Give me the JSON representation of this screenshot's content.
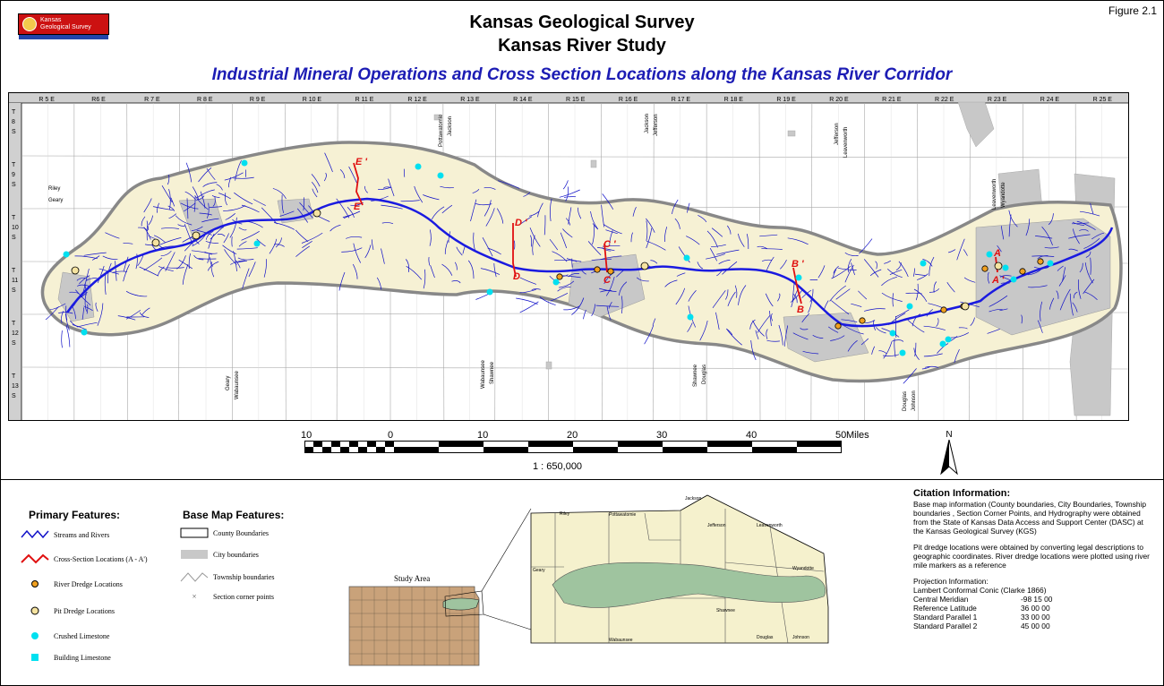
{
  "header": {
    "logo_line1": "Kansas",
    "logo_line2": "Geological Survey",
    "figure_label": "Figure 2.1",
    "title1": "Kansas Geological Survey",
    "title2": "Kansas River Study",
    "title3": "Industrial Mineral Operations and Cross Section Locations along the Kansas River Corridor"
  },
  "ranges": [
    "R 5 E",
    "R6 E",
    "R 7 E",
    "R 8 E",
    "R 9 E",
    "R 10 E",
    "R 11 E",
    "R 12 E",
    "R 13 E",
    "R 14 E",
    "R 15 E",
    "R 16 E",
    "R 17 E",
    "R 18 E",
    "R 19 E",
    "R 20 E",
    "R 21 E",
    "R 22 E",
    "R 23 E",
    "R 24 E",
    "R 25 E"
  ],
  "townships": [
    {
      "t": "T",
      "n": "8",
      "s": "S"
    },
    {
      "t": "T",
      "n": "9",
      "s": "S"
    },
    {
      "t": "T",
      "n": "10",
      "s": "S"
    },
    {
      "t": "T",
      "n": "11",
      "s": "S"
    },
    {
      "t": "T",
      "n": "12",
      "s": "S"
    },
    {
      "t": "T",
      "n": "13",
      "s": "S"
    }
  ],
  "county_labels": [
    "Riley",
    "Geary",
    "Pottawatomie",
    "Jackson",
    "Jackson",
    "Jefferson",
    "Jefferson",
    "Leavenworth",
    "Leavenworth",
    "Wyandotte",
    "Geary",
    "Wabaunsee",
    "Wabaunsee",
    "Shawnee",
    "Shawnee",
    "Douglas",
    "Douglas",
    "Johnson"
  ],
  "cross_sections": [
    {
      "top": "E '",
      "bottom": "E"
    },
    {
      "top": "D '",
      "bottom": "D"
    },
    {
      "top": "C '",
      "bottom": "C"
    },
    {
      "top": "B '",
      "bottom": "B"
    },
    {
      "top": "A",
      "bottom": "A '"
    }
  ],
  "scale": {
    "ticks": [
      "10",
      "0",
      "10",
      "20",
      "30",
      "40",
      "50"
    ],
    "unit": "Miles",
    "ratio": "1 : 650,000",
    "north": "N"
  },
  "legend": {
    "primary_title": "Primary Features:",
    "primary": [
      "Streams and Rivers",
      "Cross-Section Locations (A - A')",
      "River Dredge Locations",
      "Pit Dredge Locations",
      "Crushed Limestone",
      "Building Limestone"
    ],
    "base_title": "Base Map Features:",
    "base": [
      "County Boundaries",
      "City boundaries",
      "Township boundaries",
      "Section corner points"
    ]
  },
  "study_area": {
    "label": "Study Area",
    "inset_counties": [
      "Jackson",
      "Riley",
      "Pottawatomie",
      "Jefferson",
      "Leavenworth",
      "Geary",
      "Wyandotte",
      "Shawnee",
      "Wabaunsee",
      "Douglas",
      "Johnson"
    ]
  },
  "citation": {
    "title": "Citation Information:",
    "p1": "Base map information (County boundaries, City Boundaries, Township boundaries , Section Corner Points, and Hydrography were obtained from the State of Kansas Data Access and Support Center (DASC) at the Kansas Geological Survey (KGS)",
    "p2": "Pit dredge locations were obtained by converting legal descriptions to geographic coordinates.  River dredge locations were plotted using river mile markers as a reference",
    "proj_title": "Projection Information:",
    "proj_name": "Lambert Conformal Conic (Clarke 1866)",
    "rows": [
      {
        "k": "Central Meridian",
        "v": "-98 15 00"
      },
      {
        "k": "Reference Latitude",
        "v": "36 00 00"
      },
      {
        "k": "Standard Parallel 1",
        "v": "33 00 00"
      },
      {
        "k": "Standard Parallel 2",
        "v": "45 00 00"
      }
    ]
  },
  "colors": {
    "corridor": "#f6f1d4",
    "city": "#c8c8c8",
    "stream": "#1010c8",
    "river": "#1a1ae0",
    "section": "#e01010",
    "dredge": "#f0a020",
    "limestone": "#00e0f0",
    "title3": "#1c1cb4",
    "inset_corridor": "#9fc49f",
    "inset_counties": "#f5f1cd",
    "kansas": "#c9a27a"
  }
}
